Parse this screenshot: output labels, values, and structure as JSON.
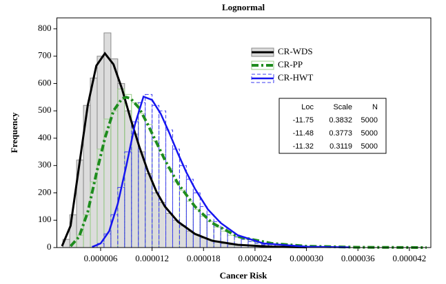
{
  "chart_data": {
    "type": "histogram",
    "title": "Lognormal",
    "x_label": "Cancer Risk",
    "y_label": "Frequency",
    "xlim": [
      9e-07,
      4.45e-05
    ],
    "ylim": [
      0,
      840
    ],
    "xticks": [
      {
        "value": 6e-06,
        "label": "0.000006"
      },
      {
        "value": 1.2e-05,
        "label": "0.000012"
      },
      {
        "value": 1.8e-05,
        "label": "0.000018"
      },
      {
        "value": 2.4e-05,
        "label": "0.000024"
      },
      {
        "value": 3e-05,
        "label": "0.000030"
      },
      {
        "value": 3.6e-05,
        "label": "0.000036"
      },
      {
        "value": 4.2e-05,
        "label": "0.000042"
      }
    ],
    "yticks": [
      0,
      100,
      200,
      300,
      400,
      500,
      600,
      700,
      800
    ],
    "legend_loc": "upper right",
    "series": [
      {
        "name": "CR-WDS",
        "color": "#000000",
        "bar_fill": "#dcdcdc",
        "bar_stroke": "#8a8a8a",
        "bins": [
          1.6e-06,
          2.4e-06,
          3.2e-06,
          4e-06,
          4.8e-06,
          5.6e-06,
          6.4e-06,
          7.2e-06,
          8e-06,
          8.8e-06,
          9.6e-06,
          1.04e-05,
          1.12e-05,
          1.2e-05,
          1.28e-05,
          1.36e-05,
          1.44e-05,
          1.52e-05,
          1.6e-05,
          1.68e-05,
          1.76e-05,
          1.84e-05,
          1.92e-05,
          2e-05,
          2.08e-05,
          2.16e-05,
          2.24e-05
        ],
        "values": [
          30,
          120,
          320,
          520,
          620,
          700,
          785,
          690,
          600,
          500,
          415,
          350,
          270,
          200,
          165,
          125,
          100,
          80,
          60,
          48,
          35,
          28,
          20,
          15,
          10,
          8
        ],
        "fit": {
          "x": [
            1.5e-06,
            2.5e-06,
            3.5e-06,
            4.5e-06,
            5.5e-06,
            6.5e-06,
            7.5e-06,
            8.5e-06,
            9.5e-06,
            1.05e-05,
            1.15e-05,
            1.25e-05,
            1.35e-05,
            1.5e-05,
            1.7e-05,
            1.9e-05,
            2.2e-05,
            2.6e-05,
            3e-05
          ],
          "values": [
            5,
            80,
            300,
            520,
            665,
            710,
            670,
            580,
            470,
            370,
            280,
            205,
            150,
            95,
            50,
            25,
            10,
            3,
            1
          ]
        }
      },
      {
        "name": "CR-PP",
        "color": "#1e8c1e",
        "bar_fill": "none",
        "bar_stroke": "#9acd8a",
        "bins": [
          3.2e-06,
          4e-06,
          4.8e-06,
          5.6e-06,
          6.4e-06,
          7.2e-06,
          8e-06,
          8.8e-06,
          9.6e-06,
          1.04e-05,
          1.12e-05,
          1.2e-05,
          1.28e-05,
          1.36e-05,
          1.44e-05,
          1.52e-05,
          1.6e-05,
          1.68e-05,
          1.76e-05,
          1.84e-05,
          1.92e-05,
          2e-05,
          2.08e-05,
          2.16e-05,
          2.24e-05,
          2.32e-05,
          2.4e-05,
          2.48e-05,
          2.56e-05
        ],
        "values": [
          45,
          120,
          240,
          360,
          470,
          500,
          580,
          560,
          530,
          490,
          450,
          390,
          340,
          290,
          240,
          210,
          170,
          140,
          115,
          95,
          75,
          60,
          45,
          38,
          30,
          22,
          18,
          14
        ],
        "fit": {
          "x": [
            2.5e-06,
            3.5e-06,
            4.5e-06,
            5.5e-06,
            6.5e-06,
            7.5e-06,
            8.5e-06,
            9e-06,
            9.5e-06,
            1.05e-05,
            1.15e-05,
            1.25e-05,
            1.35e-05,
            1.5e-05,
            1.7e-05,
            1.9e-05,
            2.2e-05,
            2.6e-05,
            3e-05,
            3.6e-05,
            4.4e-05
          ],
          "values": [
            5,
            40,
            130,
            270,
            400,
            500,
            545,
            550,
            545,
            510,
            450,
            385,
            320,
            235,
            150,
            90,
            40,
            15,
            5,
            1,
            0
          ]
        }
      },
      {
        "name": "CR-HWT",
        "color": "#1515f0",
        "bar_fill": "none",
        "bar_stroke": "#3c3cf0",
        "bins": [
          5.6e-06,
          6.4e-06,
          7.2e-06,
          8e-06,
          8.8e-06,
          9.6e-06,
          1.04e-05,
          1.12e-05,
          1.2e-05,
          1.28e-05,
          1.36e-05,
          1.44e-05,
          1.52e-05,
          1.6e-05,
          1.68e-05,
          1.76e-05,
          1.84e-05,
          1.92e-05,
          2e-05,
          2.08e-05,
          2.16e-05,
          2.24e-05,
          2.32e-05,
          2.4e-05,
          2.48e-05,
          2.56e-05,
          2.64e-05,
          2.72e-05,
          2.8e-05
        ],
        "values": [
          15,
          50,
          120,
          220,
          350,
          460,
          530,
          560,
          520,
          500,
          430,
          360,
          300,
          250,
          200,
          150,
          120,
          95,
          70,
          55,
          40,
          30,
          22,
          15,
          10,
          7,
          5,
          3
        ],
        "fit": {
          "x": [
            5e-06,
            6e-06,
            7e-06,
            8e-06,
            9e-06,
            1e-05,
            1.1e-05,
            1.2e-05,
            1.3e-05,
            1.4e-05,
            1.5e-05,
            1.6e-05,
            1.7e-05,
            1.85e-05,
            2e-05,
            2.2e-05,
            2.5e-05,
            3e-05,
            3.5e-05
          ],
          "values": [
            2,
            15,
            60,
            160,
            300,
            450,
            552,
            540,
            490,
            420,
            345,
            275,
            215,
            140,
            90,
            45,
            15,
            3,
            1
          ]
        }
      }
    ],
    "fit_table": {
      "columns": [
        "Loc",
        "Scale",
        "N"
      ],
      "rows": [
        [
          -11.75,
          0.3832,
          5000
        ],
        [
          -11.48,
          0.3773,
          5000
        ],
        [
          -11.32,
          0.3119,
          5000
        ]
      ]
    }
  }
}
